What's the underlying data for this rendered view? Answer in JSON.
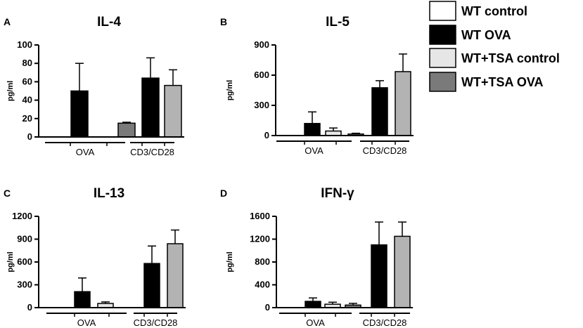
{
  "legend": [
    {
      "label": "WT control",
      "color": "#ffffff"
    },
    {
      "label": "WT OVA",
      "color": "#000000"
    },
    {
      "label": "WT+TSA control",
      "color": "#e6e6e6"
    },
    {
      "label": "WT+TSA OVA",
      "color": "#7a7a7a"
    }
  ],
  "group_labels": {
    "ova": "OVA",
    "cd3": "CD3/CD28"
  },
  "cd3_colors": [
    "#000000",
    "#b3b3b3"
  ],
  "chart_data": [
    {
      "panel": "A",
      "title": "IL-4",
      "type": "bar",
      "ylabel": "pg/ml",
      "ylim": [
        0,
        100
      ],
      "yticks": [
        0,
        20,
        40,
        60,
        80,
        100
      ],
      "categories": [
        "WT control OVA",
        "WT OVA",
        "WT+TSA control OVA",
        "WT+TSA OVA",
        "WT CD3/CD28",
        "WT+TSA CD3/CD28"
      ],
      "values": [
        0,
        50,
        0,
        15,
        64,
        56
      ],
      "errors": [
        0,
        30,
        0,
        1,
        22,
        17
      ]
    },
    {
      "panel": "B",
      "title": "IL-5",
      "type": "bar",
      "ylabel": "pg/ml",
      "ylim": [
        0,
        900
      ],
      "yticks": [
        0,
        300,
        600,
        900
      ],
      "categories": [
        "WT control OVA",
        "WT OVA",
        "WT+TSA control OVA",
        "WT+TSA OVA",
        "WT CD3/CD28",
        "WT+TSA CD3/CD28"
      ],
      "values": [
        0,
        120,
        45,
        15,
        475,
        635
      ],
      "errors": [
        0,
        115,
        30,
        8,
        70,
        175
      ]
    },
    {
      "panel": "C",
      "title": "IL-13",
      "type": "bar",
      "ylabel": "pg/ml",
      "ylim": [
        0,
        1200
      ],
      "yticks": [
        0,
        300,
        600,
        900,
        1200
      ],
      "categories": [
        "WT control OVA",
        "WT OVA",
        "WT+TSA control OVA",
        "WT+TSA OVA",
        "WT CD3/CD28",
        "WT+TSA CD3/CD28"
      ],
      "values": [
        0,
        210,
        55,
        0,
        580,
        840
      ],
      "errors": [
        0,
        180,
        20,
        0,
        230,
        180
      ]
    },
    {
      "panel": "D",
      "title": "IFN-γ",
      "type": "bar",
      "ylabel": "pg/ml",
      "ylim": [
        0,
        1600
      ],
      "yticks": [
        0,
        400,
        800,
        1200,
        1600
      ],
      "categories": [
        "WT control OVA",
        "WT OVA",
        "WT+TSA control OVA",
        "WT+TSA OVA",
        "WT CD3/CD28",
        "WT+TSA CD3/CD28"
      ],
      "values": [
        0,
        110,
        60,
        45,
        1100,
        1250
      ],
      "errors": [
        0,
        60,
        35,
        30,
        400,
        250
      ]
    }
  ]
}
